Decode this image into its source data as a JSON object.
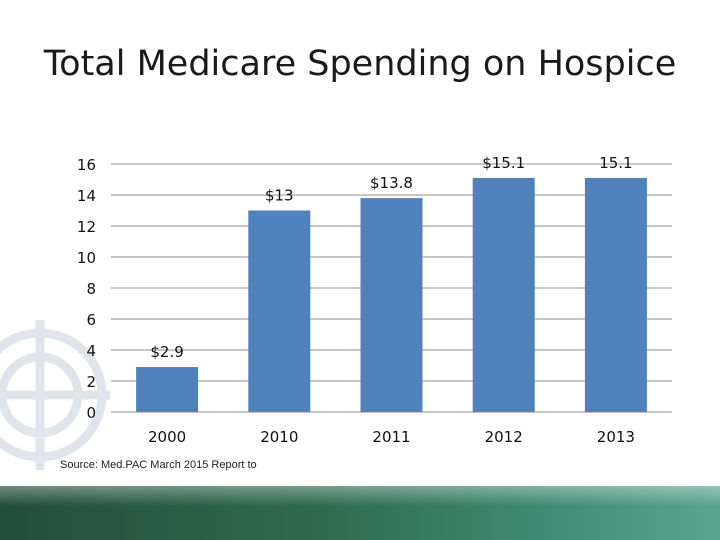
{
  "slide": {
    "title": "Total Medicare Spending on Hospice",
    "source": "Source:  Med.PAC March 2015 Report to"
  },
  "colors": {
    "bar": "#4f81bd",
    "grid": "#8c8c8c",
    "footer": "#2f6b51"
  },
  "chart_data": {
    "type": "bar",
    "categories": [
      "2000",
      "2010",
      "2011",
      "2012",
      "2013"
    ],
    "values": [
      2.9,
      13,
      13.8,
      15.1,
      15.1
    ],
    "data_labels": [
      "$2.9",
      "$13",
      "$13.8",
      "$15.1",
      "15.1"
    ],
    "yticks": [
      0,
      2,
      4,
      6,
      8,
      10,
      12,
      14,
      16
    ],
    "ylim": [
      0,
      16
    ],
    "grid": true,
    "legend": "none"
  }
}
